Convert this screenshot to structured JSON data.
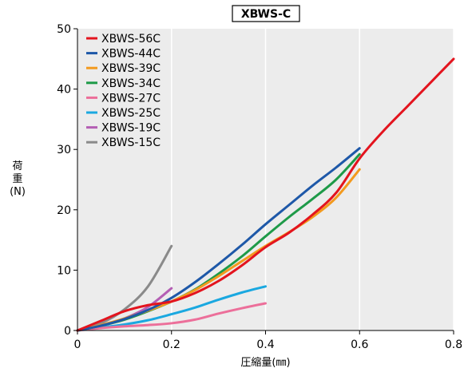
{
  "chart_data": {
    "type": "line",
    "title": "XBWS-C",
    "xlabel": "圧縮量(㎜)",
    "ylabel": [
      "荷",
      "重",
      "(N)"
    ],
    "xlim": [
      0,
      0.8
    ],
    "ylim": [
      0,
      50
    ],
    "xticks": [
      0,
      0.2,
      0.4,
      0.6,
      0.8
    ],
    "xtick_labels": [
      "0",
      "0.2",
      "0.4",
      "0.6",
      "0.8"
    ],
    "yticks": [
      0,
      10,
      20,
      30,
      40,
      50
    ],
    "ytick_labels": [
      "0",
      "10",
      "20",
      "30",
      "40",
      "50"
    ],
    "grid": "vertical",
    "legend_position": "top-left",
    "series": [
      {
        "name": "XBWS-56C",
        "color": "#e3141e",
        "x": [
          0,
          0.05,
          0.1,
          0.15,
          0.2,
          0.25,
          0.3,
          0.35,
          0.4,
          0.45,
          0.5,
          0.55,
          0.6,
          0.65,
          0.7,
          0.75,
          0.8
        ],
        "y": [
          0,
          1.6,
          3.2,
          4.2,
          4.8,
          6.2,
          8.2,
          10.8,
          13.8,
          16.2,
          19.2,
          22.8,
          28.5,
          33.0,
          37.0,
          41.0,
          45.0
        ]
      },
      {
        "name": "XBWS-44C",
        "color": "#1e58a8",
        "x": [
          0,
          0.05,
          0.1,
          0.15,
          0.2,
          0.25,
          0.3,
          0.35,
          0.4,
          0.45,
          0.5,
          0.55,
          0.6
        ],
        "y": [
          0,
          0.8,
          1.9,
          3.4,
          5.4,
          8.0,
          11.0,
          14.2,
          17.6,
          20.8,
          24.0,
          27.0,
          30.2
        ]
      },
      {
        "name": "XBWS-39C",
        "color": "#f39a1e",
        "x": [
          0,
          0.05,
          0.1,
          0.15,
          0.2,
          0.25,
          0.3,
          0.35,
          0.4,
          0.45,
          0.5,
          0.55,
          0.6
        ],
        "y": [
          0,
          0.9,
          2.0,
          3.3,
          4.8,
          6.7,
          9.0,
          11.5,
          14.0,
          16.3,
          18.8,
          22.0,
          26.7
        ]
      },
      {
        "name": "XBWS-34C",
        "color": "#1e9a48",
        "x": [
          0,
          0.05,
          0.1,
          0.15,
          0.2,
          0.25,
          0.3,
          0.35,
          0.4,
          0.45,
          0.5,
          0.55,
          0.6
        ],
        "y": [
          0,
          0.8,
          1.8,
          3.2,
          4.8,
          6.8,
          9.4,
          12.3,
          15.6,
          18.8,
          21.8,
          25.0,
          29.2
        ]
      },
      {
        "name": "XBWS-27C",
        "color": "#ec6f9a",
        "x": [
          0,
          0.05,
          0.1,
          0.15,
          0.2,
          0.25,
          0.3,
          0.35,
          0.4
        ],
        "y": [
          0,
          0.4,
          0.7,
          0.9,
          1.2,
          1.8,
          2.8,
          3.7,
          4.5
        ]
      },
      {
        "name": "XBWS-25C",
        "color": "#1aa8e0",
        "x": [
          0,
          0.05,
          0.1,
          0.15,
          0.2,
          0.25,
          0.3,
          0.35,
          0.4
        ],
        "y": [
          0,
          0.5,
          1.0,
          1.7,
          2.7,
          3.8,
          5.1,
          6.3,
          7.3
        ]
      },
      {
        "name": "XBWS-19C",
        "color": "#b45fb4",
        "x": [
          0,
          0.05,
          0.1,
          0.15,
          0.2
        ],
        "y": [
          0,
          0.8,
          2.0,
          3.9,
          7.0
        ]
      },
      {
        "name": "XBWS-15C",
        "color": "#8a8a8a",
        "x": [
          0,
          0.05,
          0.1,
          0.15,
          0.2
        ],
        "y": [
          0,
          1.2,
          3.5,
          7.3,
          14.0
        ]
      }
    ]
  }
}
